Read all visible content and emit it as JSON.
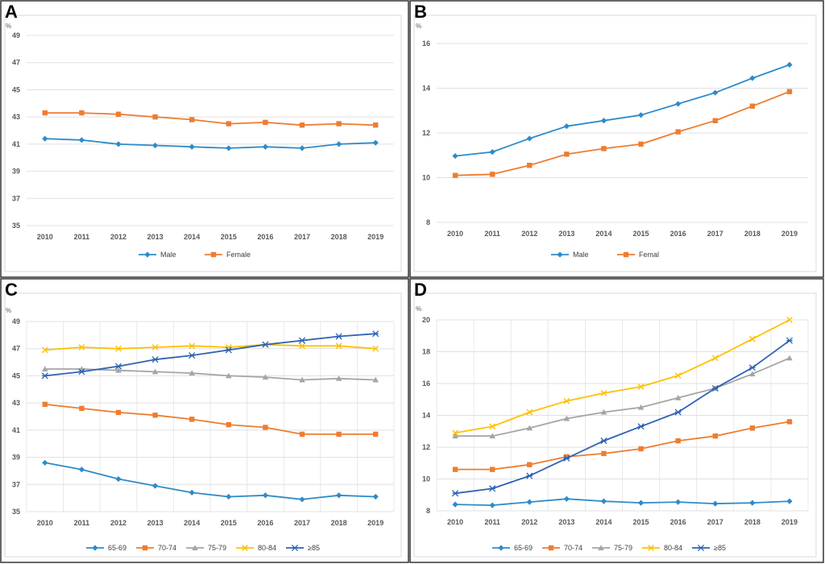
{
  "colors": {
    "blue": "#2e8bc9",
    "orange": "#ed7d31",
    "gray": "#a5a5a5",
    "yellow": "#ffc000",
    "navy": "#2e63b3"
  },
  "chart_data": [
    {
      "panel": "A",
      "type": "line",
      "ylabel": "%",
      "ylim": [
        35,
        49
      ],
      "yticks": [
        35,
        37,
        39,
        41,
        43,
        45,
        47,
        49
      ],
      "categories": [
        "2010",
        "2011",
        "2012",
        "2013",
        "2014",
        "2015",
        "2016",
        "2017",
        "2018",
        "2019"
      ],
      "series": [
        {
          "name": "Male",
          "values": [
            41.4,
            41.3,
            41.0,
            40.9,
            40.8,
            40.7,
            40.8,
            40.7,
            41.0,
            41.1
          ]
        },
        {
          "name": "Female",
          "values": [
            43.3,
            43.3,
            43.2,
            43.0,
            42.8,
            42.5,
            42.6,
            42.4,
            42.5,
            42.4
          ]
        }
      ],
      "legend": "bottom",
      "grid": "horizontal"
    },
    {
      "panel": "B",
      "type": "line",
      "ylabel": "%",
      "ylim": [
        8,
        16
      ],
      "yticks": [
        8,
        10,
        12,
        14,
        16
      ],
      "categories": [
        "2010",
        "2011",
        "2012",
        "2013",
        "2014",
        "2015",
        "2016",
        "2017",
        "2018",
        "2019"
      ],
      "series": [
        {
          "name": "Male",
          "values": [
            10.97,
            11.15,
            11.75,
            12.3,
            12.55,
            12.8,
            13.3,
            13.8,
            14.45,
            15.05
          ]
        },
        {
          "name": "Femal",
          "values": [
            10.1,
            10.15,
            10.55,
            11.05,
            11.3,
            11.5,
            12.05,
            12.55,
            13.2,
            13.85
          ]
        }
      ],
      "legend": "bottom",
      "grid": "horizontal"
    },
    {
      "panel": "C",
      "type": "line",
      "ylabel": "%",
      "ylim": [
        35,
        49
      ],
      "yticks": [
        35,
        37,
        39,
        41,
        43,
        45,
        47,
        49
      ],
      "categories": [
        "2010",
        "2011",
        "2012",
        "2013",
        "2014",
        "2015",
        "2016",
        "2017",
        "2018",
        "2019"
      ],
      "series": [
        {
          "name": "65-69",
          "values": [
            38.6,
            38.1,
            37.4,
            36.9,
            36.4,
            36.1,
            36.2,
            35.9,
            36.2,
            36.1
          ]
        },
        {
          "name": "70-74",
          "values": [
            42.9,
            42.6,
            42.3,
            42.1,
            41.8,
            41.4,
            41.2,
            40.7,
            40.7,
            40.7
          ]
        },
        {
          "name": "75-79",
          "values": [
            45.5,
            45.5,
            45.4,
            45.3,
            45.2,
            45.0,
            44.9,
            44.7,
            44.8,
            44.7
          ]
        },
        {
          "name": "80-84",
          "values": [
            46.9,
            47.1,
            47.0,
            47.1,
            47.2,
            47.1,
            47.3,
            47.2,
            47.2,
            47.0
          ]
        },
        {
          "name": "≥85",
          "values": [
            45.0,
            45.3,
            45.7,
            46.2,
            46.5,
            46.9,
            47.3,
            47.6,
            47.9,
            48.1
          ]
        }
      ],
      "legend": "bottom",
      "grid": "both"
    },
    {
      "panel": "D",
      "type": "line",
      "ylabel": "%",
      "ylim": [
        8,
        20
      ],
      "yticks": [
        8,
        10,
        12,
        14,
        16,
        18,
        20
      ],
      "categories": [
        "2010",
        "2011",
        "2012",
        "2013",
        "2014",
        "2015",
        "2016",
        "2017",
        "2018",
        "2019"
      ],
      "series": [
        {
          "name": "65-69",
          "values": [
            8.4,
            8.35,
            8.55,
            8.75,
            8.6,
            8.5,
            8.55,
            8.45,
            8.5,
            8.6
          ]
        },
        {
          "name": "70-74",
          "values": [
            10.6,
            10.6,
            10.9,
            11.4,
            11.6,
            11.9,
            12.4,
            12.7,
            13.2,
            13.6
          ]
        },
        {
          "name": "75-79",
          "values": [
            12.7,
            12.7,
            13.2,
            13.8,
            14.2,
            14.5,
            15.1,
            15.7,
            16.6,
            17.6
          ]
        },
        {
          "name": "80-84",
          "values": [
            12.9,
            13.3,
            14.2,
            14.9,
            15.4,
            15.8,
            16.5,
            17.6,
            18.8,
            20.0
          ]
        },
        {
          "name": "≥85",
          "values": [
            9.1,
            9.4,
            10.2,
            11.3,
            12.4,
            13.3,
            14.2,
            15.7,
            17.0,
            18.7
          ]
        }
      ],
      "legend": "bottom",
      "grid": "both"
    }
  ]
}
